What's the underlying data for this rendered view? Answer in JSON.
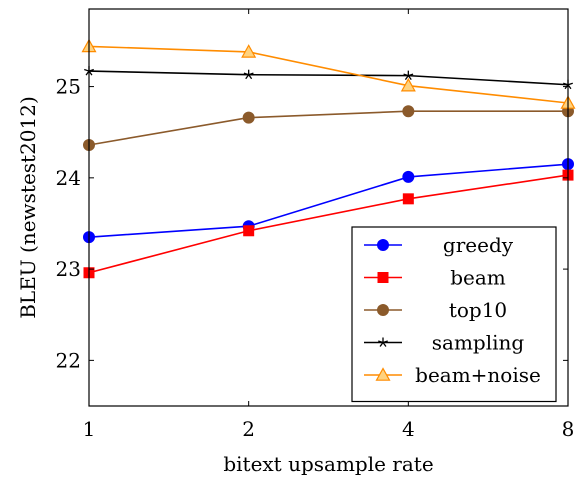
{
  "chart_data": {
    "type": "line",
    "x": [
      1,
      2,
      4,
      8
    ],
    "xticks": [
      "1",
      "2",
      "4",
      "8"
    ],
    "xscale": "log2",
    "xlabel": "bitext upsample rate",
    "ylabel": "BLEU (newstest2012)",
    "ylim": [
      21.5,
      25.85
    ],
    "yticks": [
      22,
      23,
      24,
      25
    ],
    "grid": false,
    "legend_position": "bottom-right",
    "series": [
      {
        "name": "greedy",
        "color": "#0000ff",
        "marker": "circle",
        "values": [
          23.35,
          23.47,
          24.01,
          24.15
        ]
      },
      {
        "name": "beam",
        "color": "#ff0000",
        "marker": "square",
        "values": [
          22.96,
          23.42,
          23.77,
          24.03
        ]
      },
      {
        "name": "top10",
        "color": "#8b5a2b",
        "marker": "circle",
        "values": [
          24.36,
          24.66,
          24.73,
          24.73
        ]
      },
      {
        "name": "sampling",
        "color": "#000000",
        "marker": "star",
        "values": [
          25.17,
          25.13,
          25.12,
          25.02
        ]
      },
      {
        "name": "beam+noise",
        "color": "#ff8c00",
        "marker": "triangle",
        "values": [
          25.44,
          25.38,
          25.01,
          24.82
        ]
      }
    ]
  }
}
